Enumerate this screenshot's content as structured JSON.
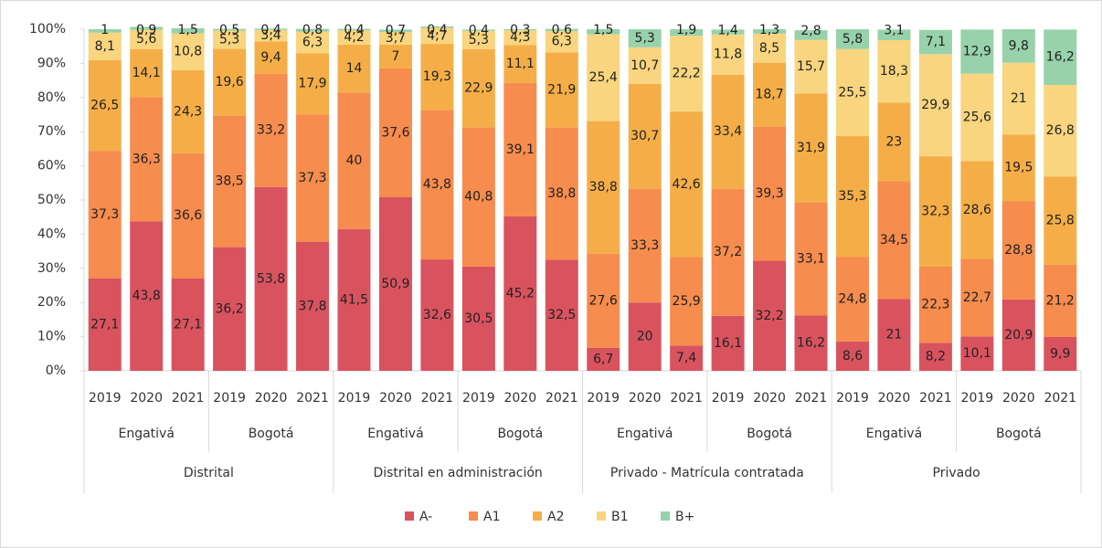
{
  "chart_data": {
    "type": "stacked_bar",
    "categories": [
      "2019",
      "2020",
      "2021",
      "2019",
      "2020",
      "2021",
      "2019",
      "2020",
      "2021",
      "2019",
      "2020",
      "2021",
      "2019",
      "2020",
      "2021",
      "2019",
      "2020",
      "2021",
      "2019",
      "2020",
      "2021",
      "2019",
      "2020",
      "2021"
    ],
    "subgroups": [
      "Engativá",
      "Bogotá",
      "Engativá",
      "Bogotá",
      "Engativá",
      "Bogotá",
      "Engativá",
      "Bogotá"
    ],
    "groups": [
      "Distrital",
      "Distrital en administración",
      "Privado - Matrícula contratada",
      "Privado"
    ],
    "series": [
      {
        "name": "A-",
        "color": "#d9535f",
        "values": [
          27.1,
          43.8,
          27.1,
          36.2,
          53.8,
          37.8,
          41.5,
          50.9,
          32.6,
          30.5,
          45.2,
          32.5,
          6.7,
          20,
          7.4,
          16.1,
          32.2,
          16.2,
          8.6,
          21,
          8.2,
          10.1,
          20.9,
          9.9
        ],
        "value_labels": [
          "27,1",
          "43,8",
          "27,1",
          "36,2",
          "53,8",
          "37,8",
          "41,5",
          "50,9",
          "32,6",
          "30,5",
          "45,2",
          "32,5",
          "6,7",
          "20",
          "7,4",
          "16,1",
          "32,2",
          "16,2",
          "8,6",
          "21",
          "8,2",
          "10,1",
          "20,9",
          "9,9"
        ]
      },
      {
        "name": "A1",
        "color": "#f68c4d",
        "values": [
          37.3,
          36.3,
          36.6,
          38.5,
          33.2,
          37.3,
          40,
          37.6,
          43.8,
          40.8,
          39.1,
          38.8,
          27.6,
          33.3,
          25.9,
          37.2,
          39.3,
          33.1,
          24.8,
          34.5,
          22.3,
          22.7,
          28.8,
          21.2
        ],
        "value_labels": [
          "37,3",
          "36,3",
          "36,6",
          "38,5",
          "33,2",
          "37,3",
          "40",
          "37,6",
          "43,8",
          "40,8",
          "39,1",
          "38,8",
          "27,6",
          "33,3",
          "25,9",
          "37,2",
          "39,3",
          "33,1",
          "24,8",
          "34,5",
          "22,3",
          "22,7",
          "28,8",
          "21,2"
        ]
      },
      {
        "name": "A2",
        "color": "#f5ae47",
        "values": [
          26.5,
          14.1,
          24.3,
          19.6,
          9.4,
          17.9,
          14,
          7,
          19.3,
          22.9,
          11.1,
          21.9,
          38.8,
          30.7,
          42.6,
          33.4,
          18.7,
          31.9,
          35.3,
          23,
          32.3,
          28.6,
          19.5,
          25.8
        ],
        "value_labels": [
          "26,5",
          "14,1",
          "24,3",
          "19,6",
          "9,4",
          "17,9",
          "14",
          "7",
          "19,3",
          "22,9",
          "11,1",
          "21,9",
          "38,8",
          "30,7",
          "42,6",
          "33,4",
          "18,7",
          "31,9",
          "35,3",
          "23",
          "32,3",
          "28,6",
          "19,5",
          "25,8"
        ]
      },
      {
        "name": "B1",
        "color": "#f8d57e",
        "values": [
          8.1,
          5.6,
          10.8,
          5.3,
          3.4,
          6.3,
          4.2,
          3.7,
          4.7,
          5.3,
          4.3,
          6.3,
          25.4,
          10.7,
          22.2,
          11.8,
          8.5,
          15.7,
          25.5,
          18.3,
          29.9,
          25.6,
          21,
          26.8
        ],
        "value_labels": [
          "8,1",
          "5,6",
          "10,8",
          "5,3",
          "3,4",
          "6,3",
          "4,2",
          "3,7",
          "4,7",
          "5,3",
          "4,3",
          "6,3",
          "25,4",
          "10,7",
          "22,2",
          "11,8",
          "8,5",
          "15,7",
          "25,5",
          "18,3",
          "29,9",
          "25,6",
          "21",
          "26,8"
        ]
      },
      {
        "name": "B+",
        "color": "#97d2ab",
        "values": [
          1,
          0.9,
          1.5,
          0.5,
          0.4,
          0.8,
          0.4,
          0.7,
          0.4,
          0.4,
          0.3,
          0.6,
          1.5,
          5.3,
          1.9,
          1.4,
          1.3,
          2.8,
          5.8,
          3.1,
          7.1,
          12.9,
          9.8,
          16.2
        ],
        "value_labels": [
          "1",
          "0,9",
          "1,5",
          "0,5",
          "0,4",
          "0,8",
          "0,4",
          "0,7",
          "0,4",
          "0,4",
          "0,3",
          "0,6",
          "1,5",
          "5,3",
          "1,9",
          "1,4",
          "1,3",
          "2,8",
          "5,8",
          "3,1",
          "7,1",
          "12,9",
          "9,8",
          "16,2"
        ]
      }
    ],
    "ylim": [
      0,
      100
    ],
    "yticks": [
      {
        "value": 0,
        "label": "0%"
      },
      {
        "value": 10,
        "label": "10%"
      },
      {
        "value": 20,
        "label": "20%"
      },
      {
        "value": 30,
        "label": "30%"
      },
      {
        "value": 40,
        "label": "40%"
      },
      {
        "value": 50,
        "label": "50%"
      },
      {
        "value": 60,
        "label": "60%"
      },
      {
        "value": 70,
        "label": "70%"
      },
      {
        "value": 80,
        "label": "80%"
      },
      {
        "value": 90,
        "label": "90%"
      },
      {
        "value": 100,
        "label": "100%"
      }
    ],
    "grid": false,
    "legend": "bottom"
  }
}
